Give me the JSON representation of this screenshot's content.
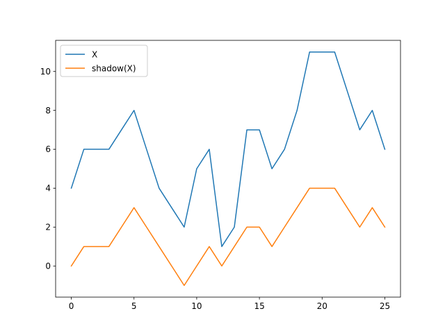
{
  "chart_data": {
    "type": "line",
    "title": "",
    "xlabel": "",
    "ylabel": "",
    "xlim": [
      -1.25,
      26.25
    ],
    "ylim": [
      -1.6,
      11.6
    ],
    "xticks": [
      0,
      5,
      10,
      15,
      20,
      25
    ],
    "yticks": [
      0,
      2,
      4,
      6,
      8,
      10
    ],
    "grid": false,
    "legend": {
      "placement": "top-left"
    },
    "x": [
      0,
      1,
      2,
      3,
      4,
      5,
      6,
      7,
      8,
      9,
      10,
      11,
      12,
      13,
      14,
      15,
      16,
      17,
      18,
      19,
      20,
      21,
      22,
      23,
      24,
      25
    ],
    "series": [
      {
        "name": "X",
        "color": "#1f77b4",
        "values": [
          4,
          6,
          6,
          6,
          7,
          8,
          6,
          4,
          3,
          2,
          5,
          6,
          1,
          2,
          7,
          7,
          5,
          6,
          8,
          11,
          11,
          11,
          9,
          7,
          8,
          6
        ]
      },
      {
        "name": "shadow(X)",
        "color": "#ff7f0e",
        "values": [
          0,
          1,
          1,
          1,
          2,
          3,
          2,
          1,
          0,
          -1,
          0,
          1,
          0,
          1,
          2,
          2,
          1,
          2,
          3,
          4,
          4,
          4,
          3,
          2,
          3,
          2
        ]
      }
    ]
  }
}
